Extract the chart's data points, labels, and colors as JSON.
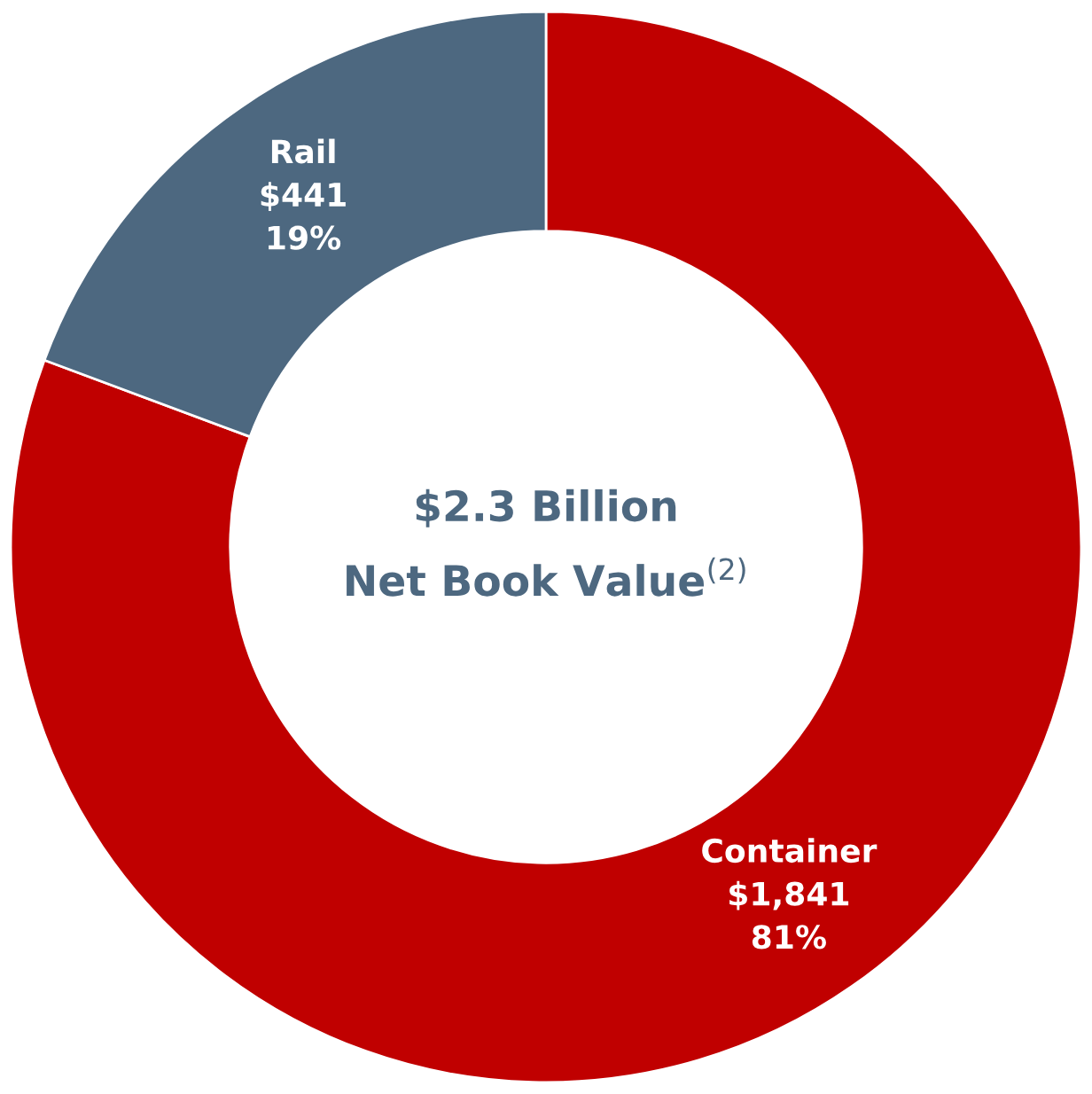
{
  "chart_data": {
    "type": "donut",
    "categories": [
      "Container",
      "Rail"
    ],
    "values": [
      1841,
      441
    ],
    "colors": [
      "#c00000",
      "#4d6880"
    ],
    "value_labels": [
      "$1,841\n81%",
      "$441\n19%"
    ],
    "annotations": [
      "$2.3 Billion",
      "Net Book Value$^{(2)}$"
    ],
    "legend": false
  }
}
